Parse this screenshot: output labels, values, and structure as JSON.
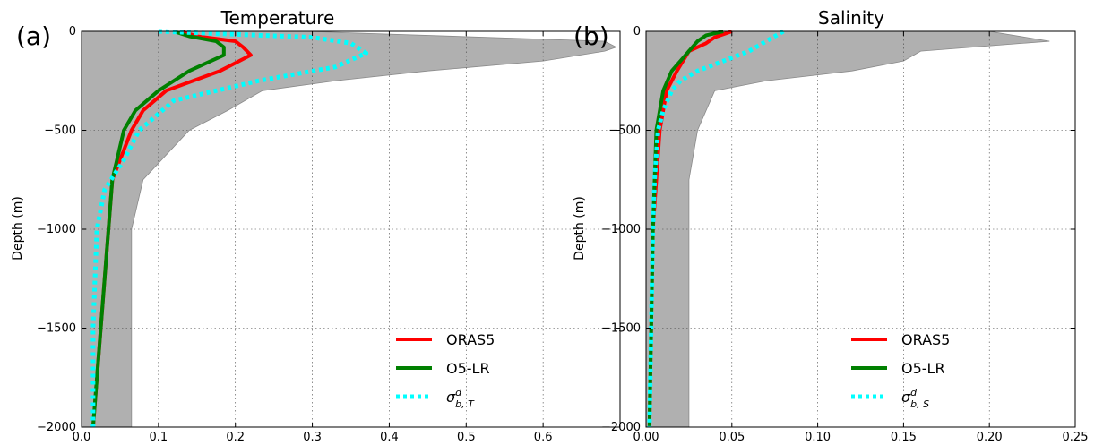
{
  "chart_data": [
    {
      "type": "line",
      "panel_label": "(a)",
      "title": "Temperature",
      "xlabel": "",
      "ylabel": "Depth (m)",
      "xlim": [
        0,
        0.7
      ],
      "ylim": [
        -2000,
        0
      ],
      "xticks": [
        0.0,
        0.1,
        0.2,
        0.3,
        0.4,
        0.5,
        0.6
      ],
      "xtick_labels": [
        "0.0",
        "0.1",
        "0.2",
        "0.3",
        "0.4",
        "0.5",
        "0.6"
      ],
      "yticks": [
        0,
        -500,
        -1000,
        -1500,
        -2000
      ],
      "ytick_labels": [
        "0",
        "−500",
        "−1000",
        "−1500",
        "−2000"
      ],
      "grid": true,
      "legend_position": "lower-right",
      "shaded_range": {
        "color": "#b0b0b0",
        "depths": [
          0,
          -50,
          -80,
          -100,
          -150,
          -200,
          -250,
          -300,
          -400,
          -500,
          -750,
          -1000,
          -1500,
          -2000
        ],
        "lower": [
          0,
          0,
          0,
          0,
          0,
          0,
          0,
          0,
          0,
          0,
          0,
          0,
          0,
          0
        ],
        "upper": [
          0.29,
          0.68,
          0.695,
          0.68,
          0.6,
          0.45,
          0.33,
          0.235,
          0.19,
          0.14,
          0.08,
          0.065,
          0.065,
          0.065
        ]
      },
      "series": [
        {
          "name": "ORAS5",
          "color": "#ff0000",
          "style": "solid",
          "x": [
            0.13,
            0.15,
            0.2,
            0.21,
            0.22,
            0.18,
            0.11,
            0.08,
            0.065,
            0.04,
            0.035,
            0.025,
            0.015
          ],
          "y": [
            0,
            -25,
            -50,
            -80,
            -120,
            -200,
            -300,
            -400,
            -500,
            -750,
            -1000,
            -1500,
            -2000
          ]
        },
        {
          "name": "O5-LR",
          "color": "#008000",
          "style": "solid",
          "x": [
            0.12,
            0.14,
            0.175,
            0.185,
            0.185,
            0.14,
            0.1,
            0.07,
            0.055,
            0.04,
            0.035,
            0.025,
            0.015
          ],
          "y": [
            0,
            -25,
            -50,
            -80,
            -120,
            -200,
            -300,
            -400,
            -500,
            -750,
            -1000,
            -1500,
            -2000
          ]
        },
        {
          "name": "σ",
          "legend_sup": "d",
          "legend_sub": "b, T",
          "color": "#00ffff",
          "style": "dotted",
          "x": [
            0.1,
            0.2,
            0.3,
            0.35,
            0.37,
            0.33,
            0.23,
            0.12,
            0.075,
            0.055,
            0.03,
            0.02,
            0.015,
            0.015
          ],
          "y": [
            0,
            -15,
            -30,
            -60,
            -110,
            -180,
            -250,
            -350,
            -500,
            -650,
            -800,
            -1000,
            -1500,
            -2000
          ]
        }
      ]
    },
    {
      "type": "line",
      "panel_label": "(b)",
      "title": "Salinity",
      "xlabel": "",
      "ylabel": "Depth (m)",
      "xlim": [
        0,
        0.25
      ],
      "ylim": [
        -2000,
        0
      ],
      "xticks": [
        0.0,
        0.05,
        0.1,
        0.15,
        0.2,
        0.25
      ],
      "xtick_labels": [
        "0.00",
        "0.05",
        "0.10",
        "0.15",
        "0.20",
        "0.25"
      ],
      "yticks": [
        0,
        -500,
        -1000,
        -1500,
        -2000
      ],
      "ytick_labels": [
        "0",
        "−500",
        "−1000",
        "−1500",
        "−2000"
      ],
      "grid": true,
      "legend_position": "lower-right",
      "shaded_range": {
        "color": "#b0b0b0",
        "depths": [
          0,
          -50,
          -100,
          -150,
          -200,
          -250,
          -300,
          -500,
          -750,
          -1000,
          -1500,
          -2000
        ],
        "lower": [
          0,
          0,
          0,
          0,
          0,
          0,
          0,
          0,
          0,
          0,
          0,
          0
        ],
        "upper": [
          0.2,
          0.235,
          0.16,
          0.15,
          0.12,
          0.07,
          0.04,
          0.03,
          0.025,
          0.025,
          0.025,
          0.025
        ]
      },
      "series": [
        {
          "name": "ORAS5",
          "color": "#ff0000",
          "style": "solid",
          "x": [
            0.05,
            0.04,
            0.035,
            0.025,
            0.018,
            0.012,
            0.01,
            0.008,
            0.006,
            0.004,
            0.003,
            0.002
          ],
          "y": [
            0,
            -30,
            -60,
            -100,
            -200,
            -300,
            -400,
            -500,
            -750,
            -1000,
            -1500,
            -2000
          ]
        },
        {
          "name": "O5-LR",
          "color": "#008000",
          "style": "solid",
          "x": [
            0.045,
            0.035,
            0.03,
            0.025,
            0.015,
            0.01,
            0.008,
            0.006,
            0.005,
            0.004,
            0.003,
            0.002
          ],
          "y": [
            0,
            -20,
            -50,
            -100,
            -200,
            -300,
            -400,
            -500,
            -750,
            -1000,
            -1500,
            -2000
          ]
        },
        {
          "name": "σ",
          "legend_sup": "d",
          "legend_sub": "b, S",
          "color": "#00ffff",
          "style": "dotted",
          "x": [
            0.08,
            0.07,
            0.06,
            0.045,
            0.03,
            0.02,
            0.015,
            0.01,
            0.007,
            0.005,
            0.004,
            0.003,
            0.002
          ],
          "y": [
            0,
            -50,
            -100,
            -150,
            -200,
            -250,
            -300,
            -400,
            -500,
            -750,
            -1000,
            -1500,
            -2000
          ]
        }
      ]
    }
  ]
}
